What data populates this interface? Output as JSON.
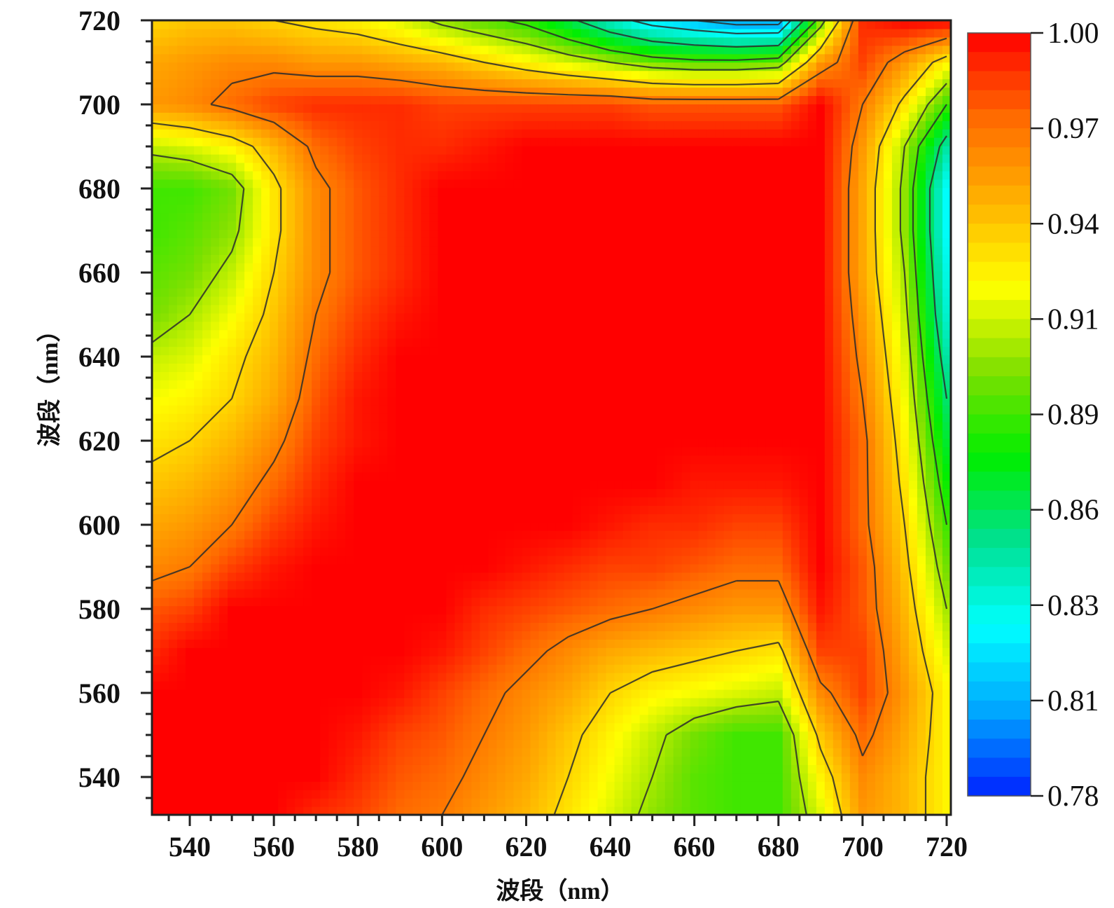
{
  "chart_data": {
    "type": "heatmap",
    "subtype": "filled contour",
    "title": "",
    "xlabel": "波段（nm）",
    "ylabel": "波段（nm）",
    "xlim": [
      531,
      721
    ],
    "ylim": [
      531,
      720
    ],
    "x_ticks": [
      "540",
      "560",
      "580",
      "600",
      "620",
      "640",
      "660",
      "680",
      "700",
      "720"
    ],
    "y_ticks": [
      "540",
      "560",
      "580",
      "600",
      "620",
      "640",
      "660",
      "680",
      "700",
      "720"
    ],
    "colorbar": {
      "range": [
        0.78,
        1.0
      ],
      "ticks": [
        "1.00",
        "0.97",
        "0.94",
        "0.91",
        "0.89",
        "0.86",
        "0.83",
        "0.81",
        "0.78"
      ],
      "colors_low_to_high": [
        "#0022ff",
        "#00a6ff",
        "#00ffff",
        "#00e090",
        "#00ee00",
        "#7fe000",
        "#ffff00",
        "#ffb300",
        "#ff6a00",
        "#ff0000"
      ]
    },
    "grid": false,
    "legend": "colorbar right",
    "levels": [
      0.97,
      0.94,
      0.91,
      0.89,
      0.86,
      0.83,
      0.81
    ],
    "grid_x": [
      531,
      540,
      550,
      560,
      570,
      580,
      590,
      600,
      610,
      620,
      630,
      640,
      650,
      660,
      670,
      680,
      690,
      700,
      710,
      720
    ],
    "grid_y": [
      531,
      540,
      550,
      560,
      570,
      580,
      590,
      600,
      610,
      620,
      630,
      640,
      650,
      660,
      670,
      680,
      690,
      700,
      710,
      720
    ],
    "z_rows_bottom_to_top": [
      [
        1.0,
        1.0,
        1.0,
        1.0,
        0.99,
        0.985,
        0.975,
        0.97,
        0.96,
        0.95,
        0.935,
        0.92,
        0.905,
        0.895,
        0.89,
        0.89,
        0.92,
        0.96,
        0.95,
        0.93
      ],
      [
        1.0,
        1.0,
        1.0,
        1.0,
        1.0,
        0.99,
        0.98,
        0.975,
        0.965,
        0.955,
        0.94,
        0.925,
        0.91,
        0.895,
        0.89,
        0.89,
        0.93,
        0.965,
        0.95,
        0.93
      ],
      [
        1.0,
        1.0,
        1.0,
        1.0,
        1.0,
        0.995,
        0.985,
        0.98,
        0.97,
        0.96,
        0.945,
        0.93,
        0.915,
        0.9,
        0.89,
        0.89,
        0.945,
        0.975,
        0.955,
        0.93
      ],
      [
        1.0,
        1.0,
        1.0,
        1.0,
        1.0,
        1.0,
        0.995,
        0.985,
        0.975,
        0.965,
        0.955,
        0.94,
        0.93,
        0.925,
        0.92,
        0.915,
        0.965,
        0.985,
        0.96,
        0.93
      ],
      [
        0.99,
        1.0,
        1.0,
        1.0,
        1.0,
        1.0,
        1.0,
        0.995,
        0.985,
        0.975,
        0.965,
        0.955,
        0.95,
        0.945,
        0.94,
        0.935,
        0.985,
        0.985,
        0.955,
        0.92
      ],
      [
        0.98,
        0.985,
        1.0,
        1.0,
        1.0,
        1.0,
        1.0,
        1.0,
        0.99,
        0.985,
        0.98,
        0.975,
        0.97,
        0.965,
        0.96,
        0.96,
        0.995,
        0.98,
        0.95,
        0.91
      ],
      [
        0.965,
        0.97,
        0.985,
        0.995,
        1.0,
        1.0,
        1.0,
        1.0,
        1.0,
        0.995,
        0.99,
        0.985,
        0.985,
        0.98,
        0.975,
        0.975,
        1.0,
        0.98,
        0.945,
        0.9
      ],
      [
        0.955,
        0.96,
        0.97,
        0.985,
        0.995,
        1.0,
        1.0,
        1.0,
        1.0,
        1.0,
        1.0,
        0.995,
        0.99,
        0.99,
        0.985,
        0.985,
        1.0,
        0.975,
        0.94,
        0.89
      ],
      [
        0.945,
        0.95,
        0.96,
        0.975,
        0.99,
        1.0,
        1.0,
        1.0,
        1.0,
        1.0,
        1.0,
        1.0,
        1.0,
        0.995,
        0.995,
        0.995,
        1.0,
        0.975,
        0.935,
        0.88
      ],
      [
        0.935,
        0.94,
        0.95,
        0.965,
        0.985,
        0.995,
        1.0,
        1.0,
        1.0,
        1.0,
        1.0,
        1.0,
        1.0,
        1.0,
        1.0,
        1.0,
        1.0,
        0.975,
        0.93,
        0.87
      ],
      [
        0.925,
        0.93,
        0.94,
        0.955,
        0.98,
        0.995,
        1.0,
        1.0,
        1.0,
        1.0,
        1.0,
        1.0,
        1.0,
        1.0,
        1.0,
        1.0,
        1.0,
        0.97,
        0.925,
        0.86
      ],
      [
        0.915,
        0.92,
        0.935,
        0.95,
        0.975,
        0.99,
        1.0,
        1.0,
        1.0,
        1.0,
        1.0,
        1.0,
        1.0,
        1.0,
        1.0,
        1.0,
        1.0,
        0.965,
        0.92,
        0.85
      ],
      [
        0.9,
        0.91,
        0.925,
        0.945,
        0.97,
        0.985,
        0.995,
        1.0,
        1.0,
        1.0,
        1.0,
        1.0,
        1.0,
        1.0,
        1.0,
        1.0,
        1.0,
        0.96,
        0.915,
        0.84
      ],
      [
        0.895,
        0.9,
        0.915,
        0.94,
        0.965,
        0.98,
        0.99,
        1.0,
        1.0,
        1.0,
        1.0,
        1.0,
        1.0,
        1.0,
        1.0,
        1.0,
        1.0,
        0.955,
        0.91,
        0.835
      ],
      [
        0.89,
        0.895,
        0.905,
        0.935,
        0.965,
        0.98,
        0.99,
        1.0,
        1.0,
        1.0,
        1.0,
        1.0,
        1.0,
        1.0,
        1.0,
        1.0,
        1.0,
        0.955,
        0.905,
        0.83
      ],
      [
        0.89,
        0.89,
        0.9,
        0.935,
        0.965,
        0.98,
        0.99,
        1.0,
        1.0,
        1.0,
        1.0,
        1.0,
        1.0,
        1.0,
        1.0,
        1.0,
        1.0,
        0.955,
        0.905,
        0.83
      ],
      [
        0.915,
        0.92,
        0.93,
        0.95,
        0.975,
        0.985,
        0.99,
        0.99,
        0.995,
        1.0,
        1.0,
        1.0,
        1.0,
        1.0,
        1.0,
        1.0,
        1.0,
        0.96,
        0.91,
        0.85
      ],
      [
        0.96,
        0.965,
        0.975,
        0.985,
        0.99,
        0.99,
        0.99,
        0.985,
        0.985,
        0.985,
        0.985,
        0.985,
        0.98,
        0.98,
        0.98,
        0.98,
        1.0,
        0.97,
        0.935,
        0.89
      ],
      [
        0.955,
        0.96,
        0.965,
        0.965,
        0.96,
        0.96,
        0.955,
        0.95,
        0.94,
        0.93,
        0.92,
        0.91,
        0.9,
        0.895,
        0.895,
        0.9,
        0.96,
        0.985,
        0.96,
        0.93
      ],
      [
        0.94,
        0.945,
        0.945,
        0.94,
        0.935,
        0.93,
        0.92,
        0.905,
        0.895,
        0.885,
        0.865,
        0.84,
        0.82,
        0.81,
        0.8,
        0.8,
        0.9,
        0.99,
        1.0,
        1.0
      ]
    ]
  }
}
